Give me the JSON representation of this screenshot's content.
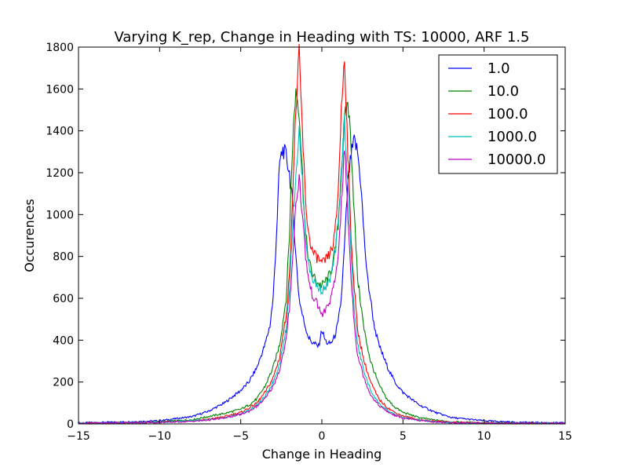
{
  "chart_data": {
    "type": "line",
    "title": "Varying K_rep, Change in Heading with TS: 10000, ARF 1.5",
    "xlabel": "Change in Heading",
    "ylabel": "Occurences",
    "xlim": [
      -15,
      15
    ],
    "ylim": [
      0,
      1800
    ],
    "xticks": [
      -15,
      -10,
      -5,
      0,
      5,
      10,
      15
    ],
    "yticks": [
      0,
      200,
      400,
      600,
      800,
      1000,
      1200,
      1400,
      1600,
      1800
    ],
    "xtick_labels": [
      "−15",
      "−10",
      "−5",
      "0",
      "5",
      "10",
      "15"
    ],
    "ytick_labels": [
      "0",
      "200",
      "400",
      "600",
      "800",
      "1000",
      "1200",
      "1400",
      "1600",
      "1800"
    ],
    "grid": false,
    "legend_position": "top-right",
    "series": [
      {
        "name": "1.0",
        "color": "#0000ff",
        "x": [
          -15,
          -12,
          -10,
          -8,
          -7,
          -6,
          -5,
          -4.5,
          -4,
          -3.5,
          -3.2,
          -3,
          -2.8,
          -2.6,
          -2.4,
          -2.2,
          -2,
          -1.8,
          -1.6,
          -1.4,
          -1.2,
          -1,
          -0.8,
          -0.6,
          -0.4,
          -0.2,
          0,
          0.2,
          0.4,
          0.6,
          0.8,
          1,
          1.2,
          1.4,
          1.6,
          1.8,
          2,
          2.2,
          2.4,
          2.6,
          2.8,
          3,
          3.2,
          3.5,
          4,
          4.5,
          5,
          6,
          7,
          8,
          10,
          12,
          15
        ],
        "y": [
          5,
          10,
          15,
          35,
          60,
          100,
          160,
          200,
          270,
          380,
          470,
          600,
          900,
          1250,
          1310,
          1280,
          1200,
          1050,
          800,
          600,
          520,
          460,
          410,
          390,
          380,
          370,
          450,
          400,
          380,
          390,
          420,
          480,
          600,
          850,
          1150,
          1280,
          1350,
          1300,
          1150,
          900,
          700,
          600,
          480,
          380,
          280,
          200,
          150,
          90,
          55,
          30,
          15,
          8,
          5
        ]
      },
      {
        "name": "10.0",
        "color": "#008000",
        "x": [
          -15,
          -12,
          -10,
          -8,
          -7,
          -6,
          -5,
          -4.5,
          -4,
          -3.5,
          -3,
          -2.6,
          -2.2,
          -2,
          -1.8,
          -1.6,
          -1.4,
          -1.2,
          -1,
          -0.8,
          -0.6,
          -0.4,
          -0.2,
          0,
          0.2,
          0.4,
          0.6,
          0.8,
          1,
          1.2,
          1.4,
          1.6,
          1.8,
          2,
          2.2,
          2.6,
          3,
          3.5,
          4,
          4.5,
          5,
          6,
          7,
          8,
          10,
          12,
          15
        ],
        "y": [
          3,
          6,
          10,
          20,
          35,
          50,
          70,
          90,
          120,
          180,
          270,
          380,
          600,
          900,
          1350,
          1600,
          1500,
          1200,
          900,
          780,
          720,
          690,
          670,
          660,
          680,
          700,
          740,
          820,
          950,
          1200,
          1450,
          1540,
          1350,
          1000,
          700,
          450,
          300,
          190,
          120,
          80,
          55,
          30,
          18,
          10,
          6,
          4,
          3
        ]
      },
      {
        "name": "100.0",
        "color": "#ff0000",
        "x": [
          -15,
          -12,
          -10,
          -8,
          -7,
          -6,
          -5,
          -4.5,
          -4,
          -3.5,
          -3,
          -2.6,
          -2.2,
          -2,
          -1.8,
          -1.6,
          -1.4,
          -1.2,
          -1,
          -0.8,
          -0.6,
          -0.4,
          -0.2,
          0,
          0.2,
          0.4,
          0.6,
          0.8,
          1,
          1.2,
          1.4,
          1.6,
          1.8,
          2,
          2.2,
          2.6,
          3,
          3.5,
          4,
          4.5,
          5,
          6,
          7,
          8,
          10,
          12,
          15
        ],
        "y": [
          3,
          5,
          8,
          15,
          22,
          35,
          55,
          75,
          100,
          150,
          220,
          320,
          520,
          700,
          1100,
          1500,
          1760,
          1400,
          1050,
          900,
          830,
          800,
          790,
          760,
          780,
          800,
          830,
          900,
          1100,
          1500,
          1760,
          1300,
          900,
          650,
          450,
          300,
          200,
          120,
          80,
          55,
          38,
          20,
          12,
          8,
          5,
          3,
          2
        ]
      },
      {
        "name": "1000.0",
        "color": "#00bfbf",
        "x": [
          -15,
          -12,
          -10,
          -8,
          -7,
          -6,
          -5,
          -4.5,
          -4,
          -3.5,
          -3,
          -2.6,
          -2.2,
          -2,
          -1.8,
          -1.6,
          -1.4,
          -1.2,
          -1,
          -0.8,
          -0.6,
          -0.4,
          -0.2,
          0,
          0.2,
          0.4,
          0.6,
          0.8,
          1,
          1.2,
          1.4,
          1.6,
          1.8,
          2,
          2.2,
          2.6,
          3,
          3.5,
          4,
          4.5,
          5,
          6,
          7,
          8,
          10,
          12,
          15
        ],
        "y": [
          3,
          5,
          8,
          14,
          20,
          30,
          48,
          65,
          90,
          130,
          200,
          290,
          450,
          650,
          950,
          1200,
          1400,
          1150,
          900,
          750,
          700,
          670,
          650,
          640,
          650,
          670,
          720,
          800,
          950,
          1200,
          1450,
          1150,
          800,
          550,
          380,
          250,
          160,
          100,
          65,
          45,
          30,
          18,
          10,
          6,
          4,
          3,
          2
        ]
      },
      {
        "name": "10000.0",
        "color": "#bf00bf",
        "x": [
          -15,
          -12,
          -10,
          -8,
          -7,
          -6,
          -5,
          -4.5,
          -4,
          -3.5,
          -3,
          -2.6,
          -2.2,
          -2,
          -1.8,
          -1.6,
          -1.4,
          -1.2,
          -1,
          -0.8,
          -0.6,
          -0.4,
          -0.2,
          0,
          0.2,
          0.4,
          0.6,
          0.8,
          1,
          1.2,
          1.4,
          1.6,
          1.8,
          2,
          2.2,
          2.6,
          3,
          3.5,
          4,
          4.5,
          5,
          6,
          7,
          8,
          10,
          12,
          15
        ],
        "y": [
          3,
          5,
          7,
          12,
          18,
          28,
          45,
          60,
          85,
          120,
          180,
          260,
          400,
          550,
          800,
          1050,
          1180,
          1000,
          800,
          680,
          620,
          590,
          560,
          520,
          540,
          570,
          610,
          680,
          800,
          1050,
          1320,
          1000,
          700,
          480,
          330,
          220,
          140,
          90,
          60,
          40,
          28,
          16,
          9,
          6,
          4,
          3,
          2
        ]
      }
    ]
  }
}
